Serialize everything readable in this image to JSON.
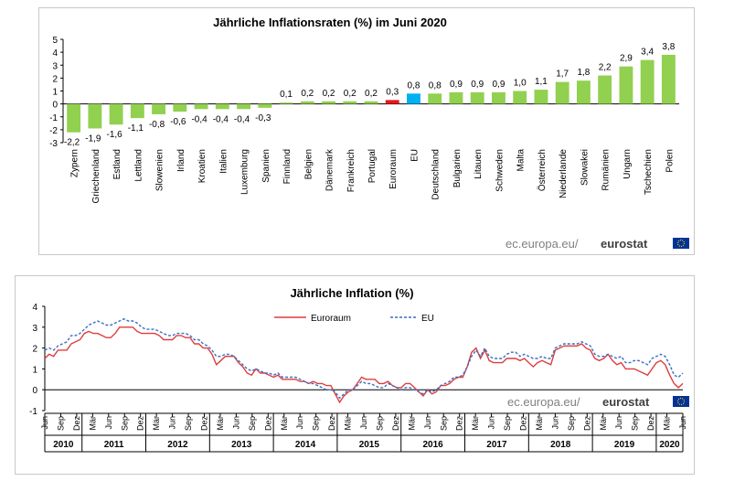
{
  "chart_data": [
    {
      "type": "bar",
      "title": "Jährliche Inflationsraten (%)  im Juni 2020",
      "categories": [
        "Zypern",
        "Griechenland",
        "Estland",
        "Lettland",
        "Slowenien",
        "Irland",
        "Kroatien",
        "Italien",
        "Luxemburg",
        "Spanien",
        "Finnland",
        "Belgien",
        "Dänemark",
        "Frankreich",
        "Portugal",
        "Euroraum",
        "EU",
        "Deutschland",
        "Bulgarien",
        "Litauen",
        "Schweden",
        "Malta",
        "Österreich",
        "Niederlande",
        "Slowakei",
        "Rumänien",
        "Ungarn",
        "Tschechien",
        "Polen"
      ],
      "values": [
        -2.2,
        -1.9,
        -1.6,
        -1.1,
        -0.8,
        -0.6,
        -0.4,
        -0.4,
        -0.4,
        -0.3,
        0.1,
        0.2,
        0.2,
        0.2,
        0.2,
        0.3,
        0.8,
        0.8,
        0.9,
        0.9,
        0.9,
        1.0,
        1.1,
        1.7,
        1.8,
        2.2,
        2.9,
        3.4,
        3.8
      ],
      "value_labels": [
        "-2,2",
        "-1,9",
        "-1,6",
        "-1,1",
        "-0,8",
        "-0,6",
        "-0,4",
        "-0,4",
        "-0,4",
        "-0,3",
        "0,1",
        "0,2",
        "0,2",
        "0,2",
        "0,2",
        "0,3",
        "0,8",
        "0,8",
        "0,9",
        "0,9",
        "0,9",
        "1,0",
        "1,1",
        "1,7",
        "1,8",
        "2,2",
        "2,9",
        "3,4",
        "3,8"
      ],
      "yticks": [
        "5",
        "4",
        "3",
        "2",
        "1",
        "0",
        "-1",
        "-2",
        "-3"
      ],
      "ylim": [
        -3,
        5
      ],
      "colors": {
        "default": "#92d050",
        "Euroraum": "#e31a1c",
        "EU": "#00b0f0"
      },
      "source": {
        "prefix": "ec.europa.eu/",
        "brand": "eurostat"
      }
    },
    {
      "type": "line",
      "title": "Jährliche  Inflation  (%)",
      "yticks": [
        "4",
        "3",
        "2",
        "1",
        "0",
        "-1"
      ],
      "ylim": [
        -1,
        4
      ],
      "x_start": "2010-06",
      "month_labels": [
        "Jun",
        "Sep",
        "Dez",
        "Mär",
        "Jun",
        "Sep",
        "Dez",
        "Mär",
        "Jun",
        "Sep",
        "Dez",
        "Mär",
        "Jun",
        "Sep",
        "Dez",
        "Mär",
        "Jun",
        "Sep",
        "Dez",
        "Mär",
        "Jun",
        "Sep",
        "Dez",
        "Mär",
        "Jun",
        "Sep",
        "Dez",
        "Mär",
        "Jun",
        "Sep",
        "Dez",
        "Mär",
        "Jun",
        "Sep",
        "Dez",
        "Mär",
        "Jun",
        "Sep",
        "Dez",
        "Mär",
        "Jun"
      ],
      "years": [
        "2010",
        "2011",
        "2012",
        "2013",
        "2014",
        "2015",
        "2016",
        "2017",
        "2018",
        "2019",
        "2020"
      ],
      "series": [
        {
          "name": "Euroraum",
          "color": "#e03c3c",
          "dash": false,
          "values": [
            1.5,
            1.7,
            1.6,
            1.9,
            1.9,
            1.9,
            2.2,
            2.3,
            2.4,
            2.7,
            2.8,
            2.7,
            2.7,
            2.6,
            2.5,
            2.5,
            2.7,
            3.0,
            3.0,
            3.0,
            3.0,
            2.8,
            2.7,
            2.7,
            2.7,
            2.7,
            2.6,
            2.4,
            2.4,
            2.4,
            2.6,
            2.6,
            2.5,
            2.5,
            2.2,
            2.2,
            2.0,
            2.0,
            1.7,
            1.2,
            1.4,
            1.6,
            1.6,
            1.6,
            1.3,
            1.1,
            0.8,
            0.7,
            1.0,
            0.8,
            0.8,
            0.7,
            0.6,
            0.7,
            0.5,
            0.5,
            0.5,
            0.5,
            0.4,
            0.4,
            0.3,
            0.4,
            0.3,
            0.3,
            0.2,
            0.2,
            -0.2,
            -0.6,
            -0.3,
            -0.1,
            0.0,
            0.3,
            0.6,
            0.5,
            0.5,
            0.5,
            0.3,
            0.3,
            0.4,
            0.2,
            0.1,
            0.1,
            0.3,
            0.3,
            0.1,
            -0.1,
            -0.3,
            0.0,
            -0.2,
            -0.1,
            0.2,
            0.2,
            0.3,
            0.5,
            0.6,
            0.6,
            1.1,
            1.8,
            2.0,
            1.5,
            1.9,
            1.4,
            1.3,
            1.3,
            1.3,
            1.5,
            1.5,
            1.5,
            1.4,
            1.5,
            1.3,
            1.1,
            1.3,
            1.4,
            1.3,
            1.2,
            1.9,
            2.0,
            2.1,
            2.1,
            2.1,
            2.1,
            2.2,
            2.0,
            1.9,
            1.5,
            1.4,
            1.5,
            1.7,
            1.4,
            1.2,
            1.3,
            1.0,
            1.0,
            1.0,
            0.9,
            0.8,
            0.7,
            1.0,
            1.3,
            1.4,
            1.2,
            0.7,
            0.3,
            0.1,
            0.3
          ]
        },
        {
          "name": "EU",
          "color": "#3a6fc4",
          "dash": true,
          "values": [
            1.9,
            2.0,
            1.9,
            2.1,
            2.2,
            2.3,
            2.6,
            2.6,
            2.7,
            2.9,
            3.1,
            3.2,
            3.3,
            3.2,
            3.1,
            3.1,
            3.2,
            3.3,
            3.4,
            3.3,
            3.3,
            3.2,
            3.0,
            2.9,
            2.9,
            2.9,
            2.8,
            2.7,
            2.6,
            2.6,
            2.7,
            2.7,
            2.7,
            2.6,
            2.4,
            2.4,
            2.2,
            2.1,
            1.9,
            1.6,
            1.6,
            1.7,
            1.7,
            1.6,
            1.4,
            1.2,
            1.0,
            0.9,
            1.0,
            0.9,
            0.8,
            0.8,
            0.7,
            0.8,
            0.6,
            0.6,
            0.6,
            0.6,
            0.5,
            0.4,
            0.3,
            0.3,
            0.2,
            0.1,
            0.0,
            0.0,
            -0.1,
            -0.4,
            -0.2,
            0.0,
            0.0,
            0.2,
            0.4,
            0.3,
            0.3,
            0.2,
            0.1,
            0.1,
            0.3,
            0.2,
            0.1,
            0.0,
            0.1,
            0.1,
            0.0,
            -0.1,
            -0.2,
            0.0,
            -0.1,
            0.0,
            0.2,
            0.3,
            0.4,
            0.6,
            0.6,
            0.7,
            1.1,
            1.6,
            1.9,
            1.6,
            2.0,
            1.6,
            1.5,
            1.5,
            1.5,
            1.7,
            1.8,
            1.8,
            1.6,
            1.7,
            1.6,
            1.5,
            1.5,
            1.6,
            1.5,
            1.5,
            2.0,
            2.1,
            2.2,
            2.2,
            2.2,
            2.2,
            2.3,
            2.2,
            2.1,
            1.7,
            1.6,
            1.6,
            1.7,
            1.6,
            1.5,
            1.6,
            1.3,
            1.3,
            1.4,
            1.4,
            1.3,
            1.2,
            1.5,
            1.6,
            1.7,
            1.6,
            1.2,
            0.7,
            0.6,
            0.8
          ]
        }
      ],
      "source": {
        "prefix": "ec.europa.eu/",
        "brand": "eurostat"
      }
    }
  ]
}
